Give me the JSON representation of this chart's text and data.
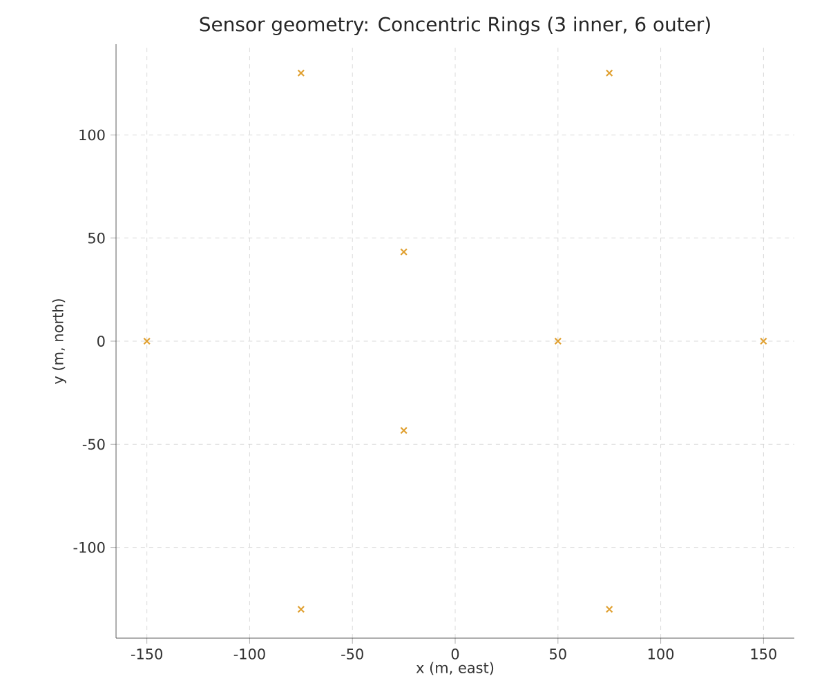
{
  "chart_data": {
    "type": "scatter",
    "title": "Sensor geometry: Concentric Rings (3 inner, 6 outer)",
    "xlabel": "x (m, east)",
    "ylabel": "y (m, north)",
    "series": [
      {
        "color": "#e0a030",
        "x": [
          50,
          -25,
          -25,
          150,
          75,
          -75,
          -150,
          -75,
          75
        ],
        "values": [
          0,
          43.3,
          -43.3,
          0,
          130,
          130,
          0,
          -130,
          -130
        ]
      }
    ],
    "xlim": [
      -165,
      165
    ],
    "ylim": [
      -144,
      144
    ],
    "xticks": [
      -150,
      -100,
      -50,
      0,
      50,
      100,
      150
    ],
    "yticks": [
      -100,
      -50,
      0,
      50,
      100
    ],
    "grid": true,
    "marker": "cross"
  }
}
